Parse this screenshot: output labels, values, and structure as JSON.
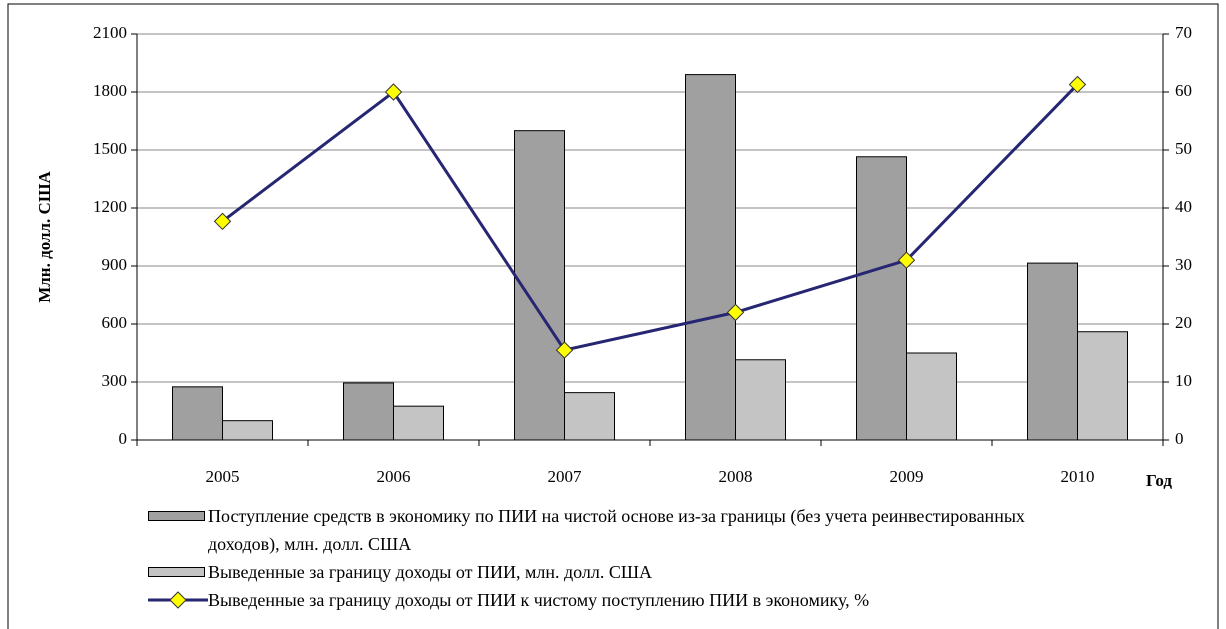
{
  "chart_data": {
    "type": "bar",
    "categories": [
      "2005",
      "2006",
      "2007",
      "2008",
      "2009",
      "2010"
    ],
    "series": [
      {
        "name": "Поступление средств в экономику по ПИИ на чистой основе из-за границы (без учета реинвестированных доходов), млн. долл. США",
        "color": "#a0a0a0",
        "values": [
          275,
          295,
          1600,
          1890,
          1465,
          915
        ]
      },
      {
        "name": "Выведенные за границу доходы от ПИИ, млн. долл. США",
        "color": "#c4c4c4",
        "values": [
          100,
          175,
          245,
          415,
          450,
          560
        ]
      },
      {
        "name": "Выведенные за границу доходы от ПИИ к чистому поступлению ПИИ в экономику, %",
        "type": "line",
        "axis": "y2",
        "color": "#262673",
        "marker_color": "#ffff00",
        "values": [
          37.7,
          60,
          15.5,
          22,
          31,
          61.3
        ]
      }
    ],
    "y_label": "Млн. долл. США",
    "x_label": "Год",
    "ylim": [
      0,
      2100
    ],
    "yticks": [
      0,
      300,
      600,
      900,
      1200,
      1500,
      1800,
      2100
    ],
    "y2lim": [
      0,
      70
    ],
    "y2ticks": [
      0,
      10,
      20,
      30,
      40,
      50,
      60,
      70
    ],
    "grid": true
  }
}
